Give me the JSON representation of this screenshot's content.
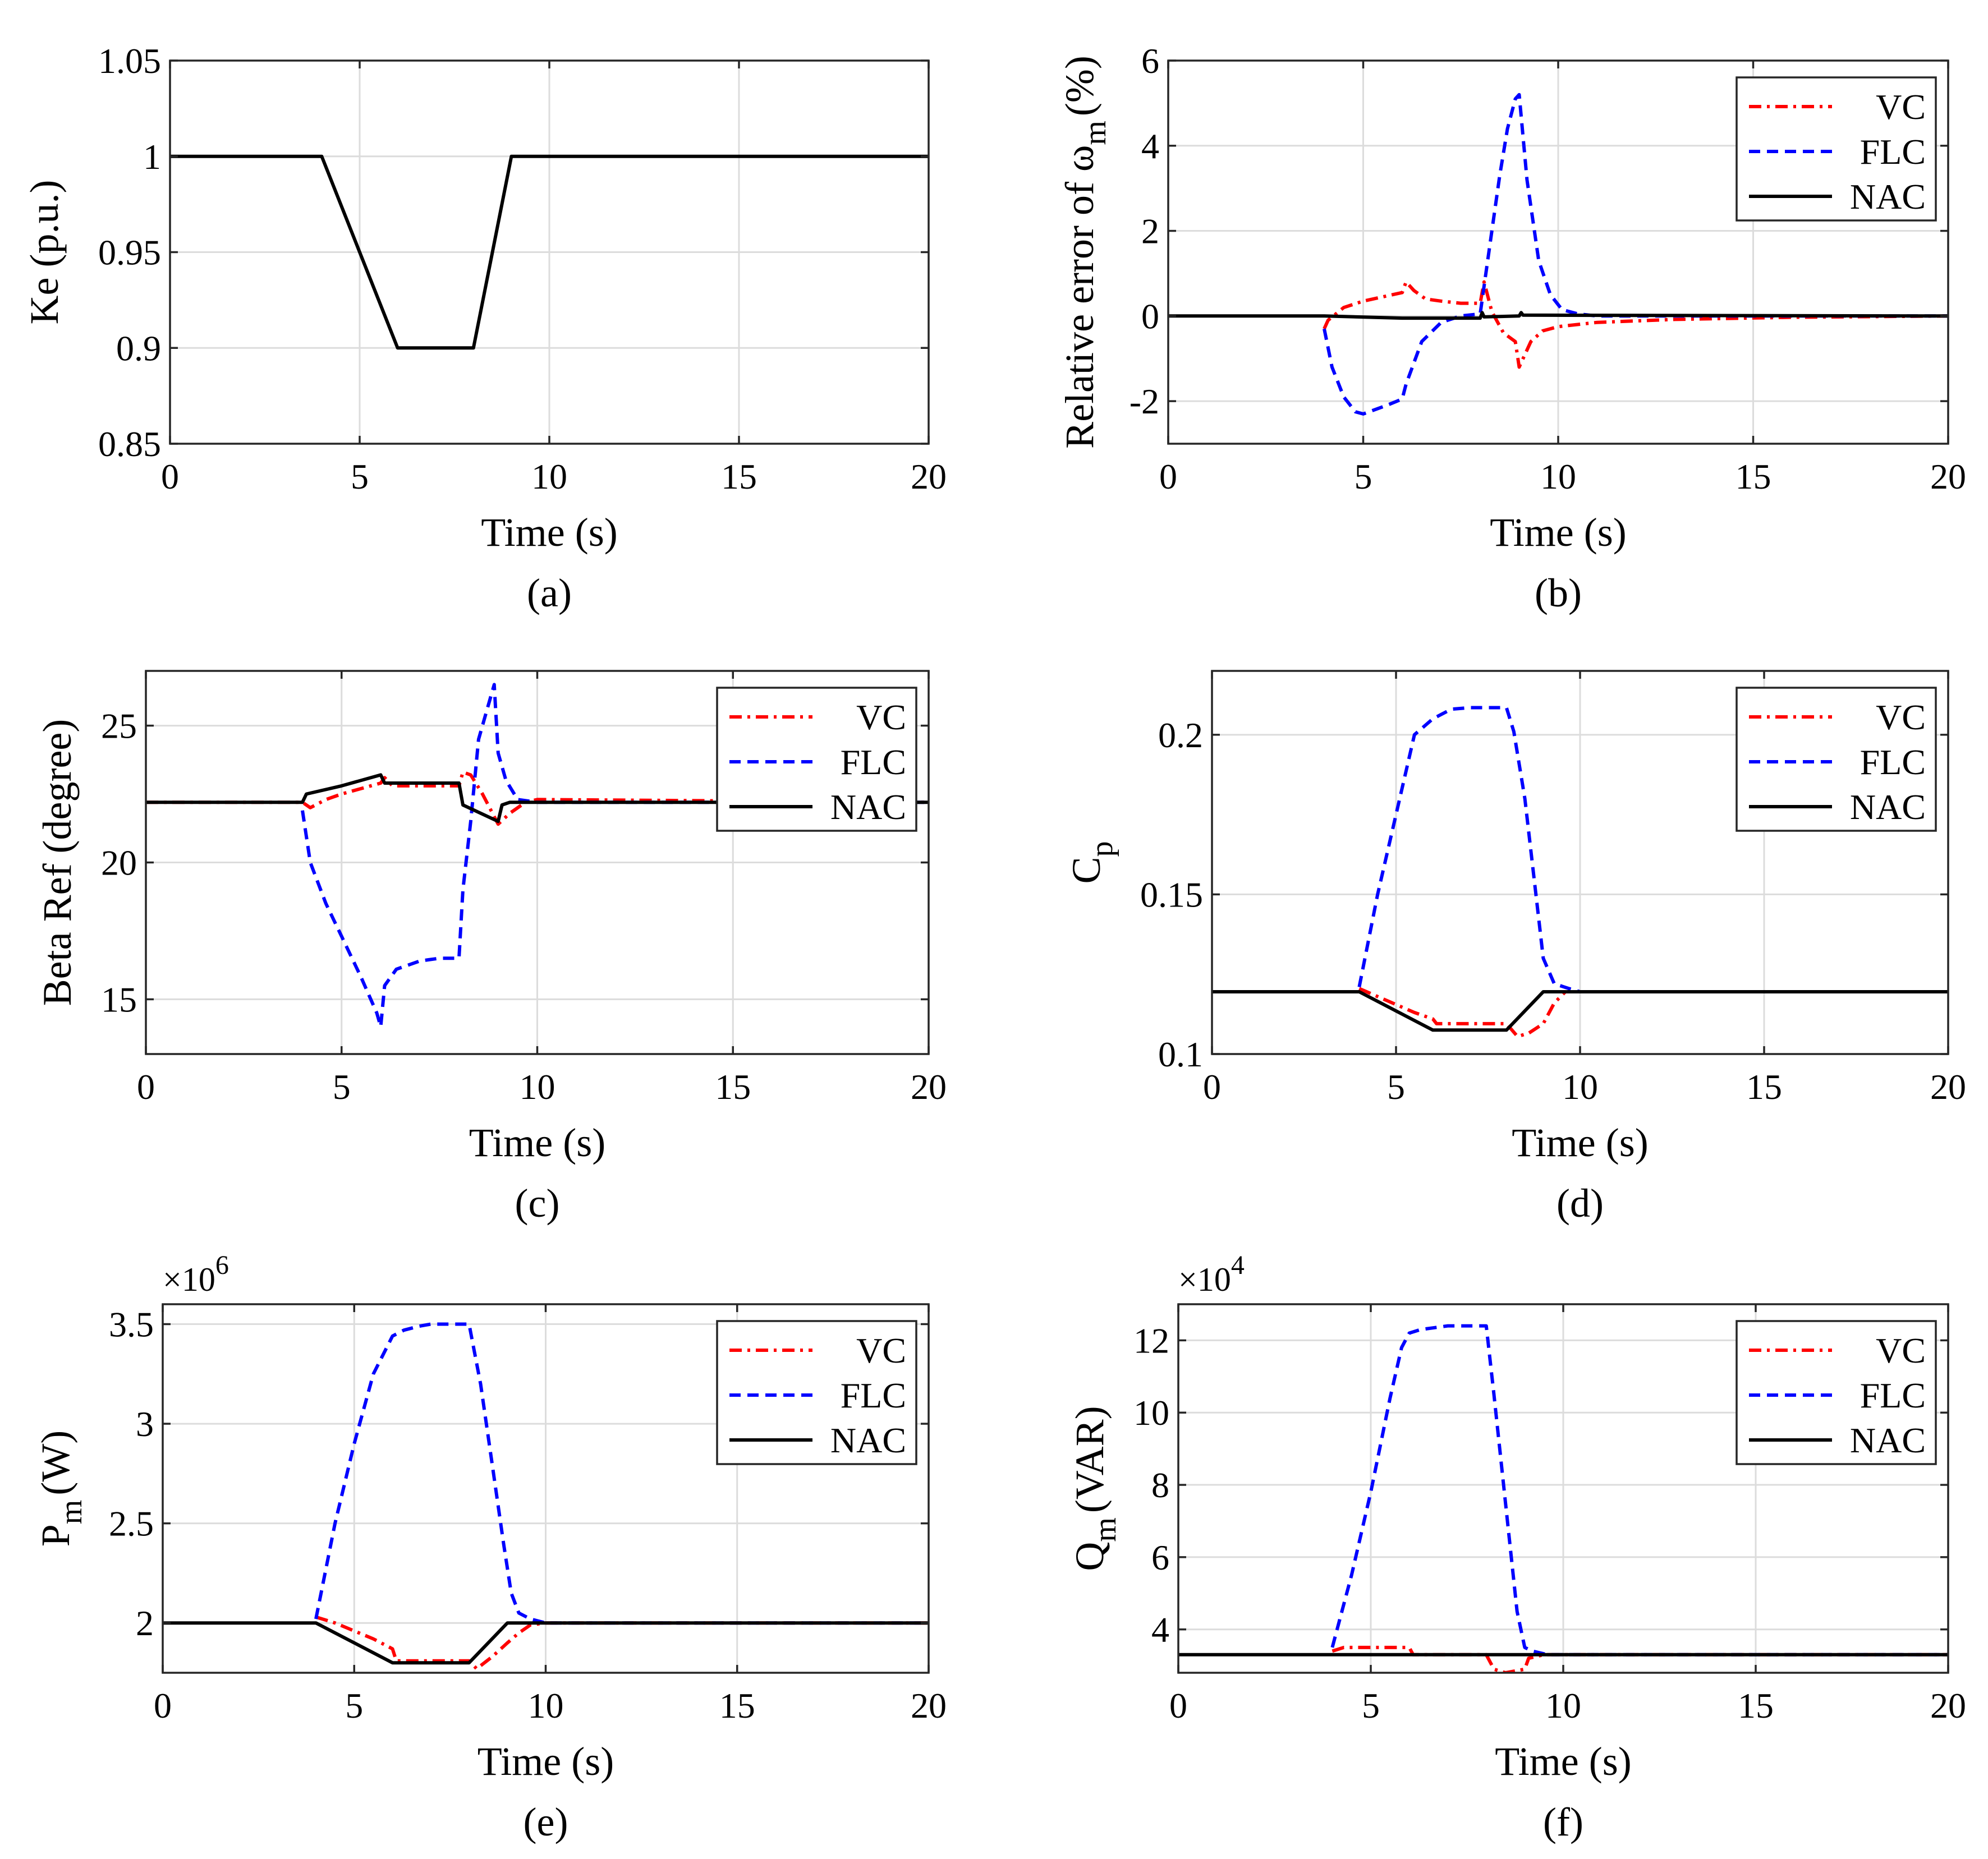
{
  "legend_entries": [
    "VC",
    "FLC",
    "NAC"
  ],
  "series_colors": {
    "VC": "#ff0000",
    "FLC": "#0000ff",
    "NAC": "#000000"
  },
  "chart_data": [
    {
      "id": "a",
      "type": "line",
      "caption": "(a)",
      "xlabel": "Time (s)",
      "ylabel": "Ke (p.u.)",
      "xlim": [
        0,
        20
      ],
      "ylim": [
        0.85,
        1.05
      ],
      "xticks": [
        0,
        5,
        10,
        15,
        20
      ],
      "xtick_labels": [
        "0",
        "5",
        "10",
        "15",
        "20"
      ],
      "yticks": [
        0.85,
        0.9,
        0.95,
        1,
        1.05
      ],
      "ytick_labels": [
        "0.85",
        "0.9",
        "0.95",
        "1",
        "1.05"
      ],
      "multiplier": "",
      "grid": true,
      "legend": false,
      "series": [
        {
          "key": "NAC",
          "x": [
            0,
            4,
            6,
            8,
            9,
            20
          ],
          "y": [
            1,
            1,
            0.9,
            0.9,
            1,
            1
          ]
        }
      ]
    },
    {
      "id": "b",
      "type": "line",
      "caption": "(b)",
      "xlabel": "Time (s)",
      "ylabel": "Relative error of ω",
      "ylabel_sub": "m",
      "ylabel_suffix": "(%)",
      "xlim": [
        0,
        20
      ],
      "ylim": [
        -3,
        6
      ],
      "xticks": [
        0,
        5,
        10,
        15,
        20
      ],
      "xtick_labels": [
        "0",
        "5",
        "10",
        "15",
        "20"
      ],
      "yticks": [
        -2,
        0,
        2,
        4,
        6
      ],
      "ytick_labels": [
        "-2",
        "0",
        "2",
        "4",
        "6"
      ],
      "multiplier": "",
      "grid": true,
      "legend": true,
      "series": [
        {
          "key": "VC",
          "x": [
            4,
            4.1,
            4.5,
            5,
            5.5,
            6,
            6.1,
            6.3,
            6.6,
            7,
            7.5,
            8,
            8.1,
            8.3,
            8.6,
            8.9,
            9,
            9.1,
            9.3,
            9.6,
            10,
            11,
            13,
            16,
            20
          ],
          "y": [
            -0.3,
            -0.1,
            0.2,
            0.35,
            0.45,
            0.55,
            0.8,
            0.6,
            0.4,
            0.35,
            0.3,
            0.3,
            0.8,
            0.1,
            -0.4,
            -0.6,
            -1.2,
            -1.0,
            -0.6,
            -0.35,
            -0.25,
            -0.15,
            -0.08,
            -0.03,
            0
          ]
        },
        {
          "key": "FLC",
          "x": [
            4,
            4.2,
            4.5,
            4.8,
            5,
            5.3,
            5.6,
            6,
            6.1,
            6.5,
            7,
            7.5,
            8,
            8.1,
            8.3,
            8.5,
            8.7,
            8.9,
            9,
            9.2,
            9.5,
            9.8,
            10.1,
            10.5,
            11,
            20
          ],
          "y": [
            -0.3,
            -1.2,
            -1.9,
            -2.25,
            -2.3,
            -2.2,
            -2.1,
            -1.95,
            -1.6,
            -0.6,
            -0.15,
            0,
            0.05,
            0.7,
            2.0,
            3.3,
            4.4,
            5.1,
            5.2,
            3.2,
            1.3,
            0.5,
            0.15,
            0.05,
            0,
            0
          ]
        },
        {
          "key": "NAC",
          "x": [
            0,
            4,
            6,
            8,
            8.05,
            8.1,
            9,
            9.05,
            9.1,
            20
          ],
          "y": [
            0,
            0,
            -0.05,
            -0.05,
            0.08,
            -0.02,
            0,
            0.08,
            0.02,
            0
          ]
        }
      ]
    },
    {
      "id": "c",
      "type": "line",
      "caption": "(c)",
      "xlabel": "Time (s)",
      "ylabel": "Beta Ref (degree)",
      "xlim": [
        0,
        20
      ],
      "ylim": [
        13,
        27
      ],
      "xticks": [
        0,
        5,
        10,
        15,
        20
      ],
      "xtick_labels": [
        "0",
        "5",
        "10",
        "15",
        "20"
      ],
      "yticks": [
        15,
        20,
        25
      ],
      "ytick_labels": [
        "15",
        "20",
        "25"
      ],
      "multiplier": "",
      "grid": true,
      "legend": true,
      "series": [
        {
          "key": "VC",
          "x": [
            0,
            4,
            4.2,
            4.6,
            5,
            6,
            6.1,
            6.3,
            7,
            8,
            8.1,
            8.3,
            8.6,
            9,
            9.3,
            9.7,
            10,
            20
          ],
          "y": [
            22.2,
            22.2,
            22,
            22.3,
            22.5,
            22.9,
            23.1,
            22.8,
            22.8,
            22.8,
            23.3,
            23.2,
            22.5,
            21.4,
            21.8,
            22.2,
            22.3,
            22.2
          ]
        },
        {
          "key": "FLC",
          "x": [
            4,
            4.2,
            4.6,
            5,
            5.5,
            5.9,
            6,
            6.1,
            6.4,
            7,
            7.5,
            8,
            8.1,
            8.3,
            8.5,
            8.7,
            8.9,
            9,
            9.2,
            9.5,
            10,
            20
          ],
          "y": [
            21.9,
            20,
            18.5,
            17.3,
            15.8,
            14.5,
            14,
            15.5,
            16.1,
            16.4,
            16.5,
            16.5,
            19,
            21.5,
            24.5,
            25.5,
            26.5,
            24,
            23,
            22.3,
            22.2,
            22.2
          ]
        },
        {
          "key": "NAC",
          "x": [
            0,
            4,
            4.1,
            5,
            6,
            6.1,
            7,
            8,
            8.1,
            9,
            9.1,
            9.3,
            10,
            20
          ],
          "y": [
            22.2,
            22.2,
            22.5,
            22.8,
            23.2,
            22.9,
            22.9,
            22.9,
            22.1,
            21.5,
            22.1,
            22.2,
            22.2,
            22.2
          ]
        }
      ]
    },
    {
      "id": "d",
      "type": "line",
      "caption": "(d)",
      "xlabel": "Time (s)",
      "ylabel": "C",
      "ylabel_sub": "p",
      "ylabel_suffix": "",
      "xlim": [
        0,
        20
      ],
      "ylim": [
        0.1,
        0.22
      ],
      "xticks": [
        0,
        5,
        10,
        15,
        20
      ],
      "xtick_labels": [
        "0",
        "5",
        "10",
        "15",
        "20"
      ],
      "yticks": [
        0.1,
        0.15,
        0.2
      ],
      "ytick_labels": [
        "0.1",
        "0.15",
        "0.2"
      ],
      "multiplier": "",
      "grid": true,
      "legend": true,
      "series": [
        {
          "key": "VC",
          "x": [
            4,
            4.5,
            5,
            5.5,
            6,
            6.1,
            7,
            8,
            8.3,
            8.6,
            9,
            9.3,
            9.6,
            10,
            20
          ],
          "y": [
            0.1205,
            0.118,
            0.1155,
            0.113,
            0.111,
            0.1095,
            0.1095,
            0.1095,
            0.1055,
            0.1065,
            0.1095,
            0.116,
            0.1195,
            0.1195,
            0.1195
          ]
        },
        {
          "key": "FLC",
          "x": [
            4,
            4.5,
            5,
            5.5,
            6,
            6.5,
            7,
            7.5,
            8,
            8.2,
            8.5,
            8.8,
            9,
            9.3,
            9.7,
            10,
            20
          ],
          "y": [
            0.121,
            0.15,
            0.175,
            0.2,
            0.205,
            0.208,
            0.2085,
            0.2085,
            0.2085,
            0.201,
            0.18,
            0.15,
            0.13,
            0.122,
            0.1205,
            0.1195,
            0.1195
          ]
        },
        {
          "key": "NAC",
          "x": [
            0,
            4,
            6,
            8,
            9,
            20
          ],
          "y": [
            0.1195,
            0.1195,
            0.1075,
            0.1075,
            0.1195,
            0.1195
          ]
        }
      ]
    },
    {
      "id": "e",
      "type": "line",
      "caption": "(e)",
      "xlabel": "Time (s)",
      "ylabel": "P",
      "ylabel_sub": "m",
      "ylabel_suffix": "(W)",
      "xlim": [
        0,
        20
      ],
      "ylim": [
        1.75,
        3.6
      ],
      "xticks": [
        0,
        5,
        10,
        15,
        20
      ],
      "xtick_labels": [
        "0",
        "5",
        "10",
        "15",
        "20"
      ],
      "yticks": [
        2,
        2.5,
        3,
        3.5
      ],
      "ytick_labels": [
        "2",
        "2.5",
        "3",
        "3.5"
      ],
      "multiplier": "×10",
      "multiplier_exp": "6",
      "grid": true,
      "legend": true,
      "series": [
        {
          "key": "VC",
          "x": [
            4,
            4.5,
            5,
            5.5,
            6,
            6.1,
            7,
            8,
            8.2,
            8.6,
            9,
            9.3,
            9.6,
            10,
            20
          ],
          "y": [
            2.03,
            2.0,
            1.96,
            1.92,
            1.87,
            1.81,
            1.81,
            1.81,
            1.77,
            1.83,
            1.9,
            1.95,
            1.99,
            2.0,
            2.0
          ]
        },
        {
          "key": "FLC",
          "x": [
            4,
            4.5,
            5,
            5.5,
            6,
            6.3,
            6.7,
            7,
            7.5,
            8,
            8.3,
            8.6,
            8.9,
            9.1,
            9.3,
            9.6,
            10,
            20
          ],
          "y": [
            2.02,
            2.5,
            2.9,
            3.25,
            3.44,
            3.47,
            3.49,
            3.5,
            3.5,
            3.5,
            3.2,
            2.8,
            2.4,
            2.15,
            2.05,
            2.02,
            2.0,
            2.0
          ]
        },
        {
          "key": "NAC",
          "x": [
            0,
            4,
            6,
            8,
            9,
            20
          ],
          "y": [
            2.0,
            2.0,
            1.8,
            1.8,
            2.0,
            2.0
          ]
        }
      ]
    },
    {
      "id": "f",
      "type": "line",
      "caption": "(f)",
      "xlabel": "Time (s)",
      "ylabel": "Q",
      "ylabel_sub": "m",
      "ylabel_suffix": "(VAR)",
      "xlim": [
        0,
        20
      ],
      "ylim": [
        2.8,
        13.0
      ],
      "xticks": [
        0,
        5,
        10,
        15,
        20
      ],
      "xtick_labels": [
        "0",
        "5",
        "10",
        "15",
        "20"
      ],
      "yticks": [
        4,
        6,
        8,
        10,
        12
      ],
      "ytick_labels": [
        "4",
        "6",
        "8",
        "10",
        "12"
      ],
      "multiplier": "×10",
      "multiplier_exp": "4",
      "grid": true,
      "legend": true,
      "series": [
        {
          "key": "VC",
          "x": [
            4,
            4.3,
            5,
            6,
            6.1,
            7,
            8,
            8.2,
            8.5,
            9,
            9.1,
            9.5,
            10,
            20
          ],
          "y": [
            3.4,
            3.5,
            3.5,
            3.5,
            3.3,
            3.3,
            3.3,
            2.9,
            2.8,
            2.9,
            3.2,
            3.3,
            3.3,
            3.3
          ]
        },
        {
          "key": "FLC",
          "x": [
            4,
            4.5,
            5,
            5.5,
            5.8,
            6,
            6.3,
            7,
            7.5,
            8,
            8.2,
            8.5,
            8.8,
            9,
            9.2,
            9.6,
            10,
            20
          ],
          "y": [
            3.5,
            5.5,
            7.8,
            10.4,
            11.8,
            12.2,
            12.3,
            12.4,
            12.4,
            12.4,
            10.5,
            7.5,
            4.5,
            3.5,
            3.4,
            3.3,
            3.3,
            3.3
          ]
        },
        {
          "key": "NAC",
          "x": [
            0,
            20
          ],
          "y": [
            3.3,
            3.3
          ]
        }
      ]
    }
  ]
}
